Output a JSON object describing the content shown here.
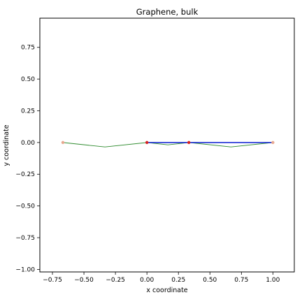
{
  "chart_data": {
    "type": "line",
    "title": "Graphene, bulk",
    "xlabel": "x coordinate",
    "ylabel": "y coordinate",
    "xlim": [
      -0.85,
      1.17
    ],
    "ylim": [
      -1.02,
      0.98
    ],
    "xticks": [
      -0.75,
      -0.5,
      -0.25,
      0.0,
      0.25,
      0.5,
      0.75,
      1.0
    ],
    "xtick_labels": [
      "−0.75",
      "−0.50",
      "−0.25",
      "0.00",
      "0.25",
      "0.50",
      "0.75",
      "1.00"
    ],
    "yticks": [
      0.75,
      0.5,
      0.25,
      0.0,
      -0.25,
      -0.5,
      -0.75,
      -1.0
    ],
    "ytick_labels": [
      "0.75",
      "0.50",
      "0.25",
      "0.00",
      "−0.25",
      "−0.50",
      "−0.75",
      "−1.00"
    ],
    "grid": false,
    "series": [
      {
        "kind": "line",
        "color": "#2e8b2e",
        "x": [
          -0.667,
          -0.333,
          0.0,
          0.167,
          0.333,
          0.667,
          1.0
        ],
        "y": [
          0.0,
          -0.035,
          0.0,
          -0.018,
          0.0,
          -0.035,
          0.0
        ]
      },
      {
        "kind": "line",
        "color": "#2e8b2e",
        "x": [
          0.0,
          0.167,
          0.333
        ],
        "y": [
          0.0,
          0.0,
          0.0
        ]
      },
      {
        "kind": "line",
        "color": "#2a3ad8",
        "x": [
          0.0,
          1.0
        ],
        "y": [
          0.0,
          0.0
        ]
      },
      {
        "kind": "points",
        "color": "#e8a890",
        "x": [
          -0.667,
          1.0
        ],
        "y": [
          0.0,
          0.0
        ]
      },
      {
        "kind": "points",
        "color": "#d62020",
        "x": [
          0.0,
          0.333
        ],
        "y": [
          0.0,
          0.0
        ]
      }
    ]
  }
}
